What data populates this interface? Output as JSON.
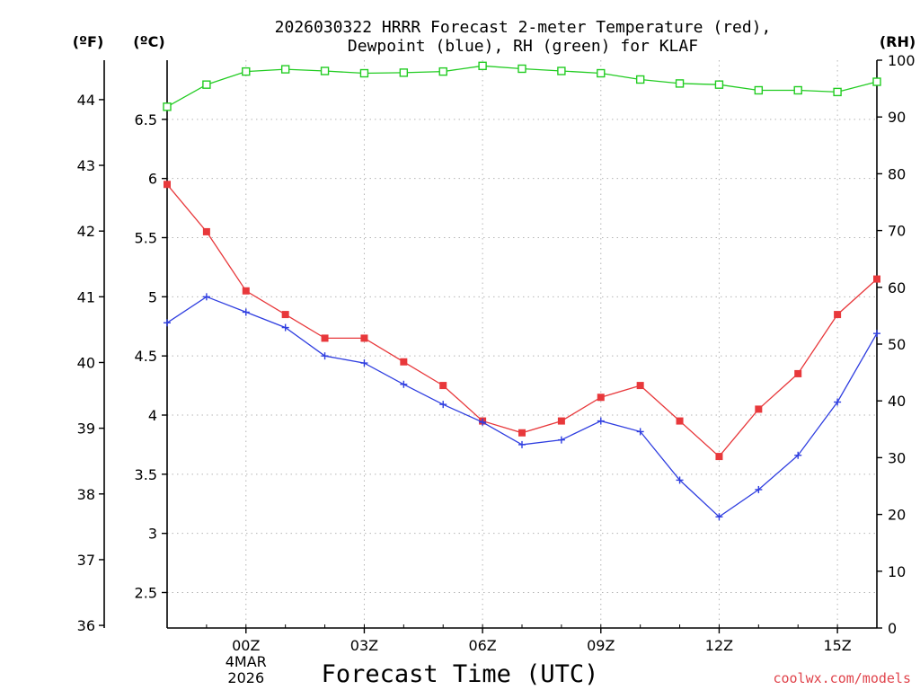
{
  "title": {
    "line1": "2026030322 HRRR Forecast 2-meter Temperature (red),",
    "line2": "Dewpoint (blue), RH (green) for KLAF"
  },
  "unit_labels": {
    "fahrenheit": "(ºF)",
    "celsius": "(ºC)",
    "rh": "(RH)"
  },
  "watermark": "coolwx.com/models",
  "chart_data": {
    "type": "line",
    "title": "2026030322 HRRR Forecast 2-meter Temperature (red), Dewpoint (blue), RH (green) for KLAF",
    "xlabel": "Forecast Time (UTC)",
    "x": [
      "22Z",
      "23Z",
      "00Z",
      "01Z",
      "02Z",
      "03Z",
      "04Z",
      "05Z",
      "06Z",
      "07Z",
      "08Z",
      "09Z",
      "10Z",
      "11Z",
      "12Z",
      "13Z",
      "14Z",
      "15Z",
      "16Z"
    ],
    "x_ticks": [
      {
        "index": 2,
        "label": "00Z",
        "sub1": "4MAR",
        "sub2": "2026"
      },
      {
        "index": 5,
        "label": "03Z"
      },
      {
        "index": 8,
        "label": "06Z"
      },
      {
        "index": 11,
        "label": "09Z"
      },
      {
        "index": 14,
        "label": "12Z"
      },
      {
        "index": 17,
        "label": "15Z"
      }
    ],
    "celsius_axis": {
      "label": "(ºC)",
      "range": [
        2.2,
        7.0
      ],
      "ticks": [
        "2.5",
        "3",
        "3.5",
        "4",
        "4.5",
        "5",
        "5.5",
        "6",
        "6.5"
      ]
    },
    "fahrenheit_axis": {
      "label": "(ºF)",
      "range": [
        35.96,
        44.6
      ],
      "ticks": [
        "36",
        "37",
        "38",
        "39",
        "40",
        "41",
        "42",
        "43",
        "44"
      ]
    },
    "rh_axis": {
      "label": "(RH)",
      "range": [
        0,
        100
      ],
      "ticks": [
        "0",
        "10",
        "20",
        "30",
        "40",
        "50",
        "60",
        "70",
        "80",
        "90",
        "100"
      ]
    },
    "series": [
      {
        "name": "Temperature",
        "axis": "celsius",
        "color": "#e8383b",
        "marker": "filled-square",
        "values": [
          5.95,
          5.55,
          5.05,
          4.85,
          4.65,
          4.65,
          4.45,
          4.25,
          3.95,
          3.85,
          3.95,
          4.15,
          4.25,
          3.95,
          3.65,
          4.05,
          4.35,
          4.85,
          5.15
        ]
      },
      {
        "name": "Dewpoint",
        "axis": "celsius",
        "color": "#2f3ee0",
        "marker": "plus",
        "values": [
          4.78,
          5.0,
          4.87,
          4.74,
          4.5,
          4.44,
          4.26,
          4.09,
          3.94,
          3.75,
          3.79,
          3.95,
          3.86,
          3.45,
          3.14,
          3.37,
          3.66,
          4.11,
          4.69
        ]
      },
      {
        "name": "RH",
        "axis": "rh",
        "color": "#22cc22",
        "marker": "hollow-square",
        "values": [
          91.8,
          95.7,
          98.0,
          98.4,
          98.1,
          97.7,
          97.8,
          98.0,
          99.0,
          98.5,
          98.1,
          97.7,
          96.6,
          95.9,
          95.7,
          94.7,
          94.7,
          94.4,
          96.2
        ]
      }
    ],
    "grid": true
  }
}
